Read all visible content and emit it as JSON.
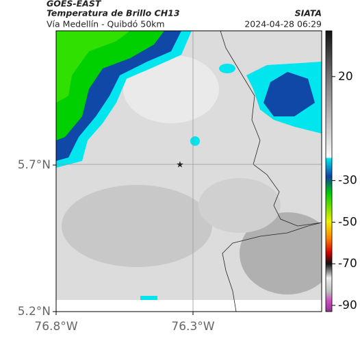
{
  "header": {
    "source": "GOES-EAST",
    "title": "Temperatura de Brillo CH13",
    "brand": "SIATA",
    "subtitle": "Vía Medellín - Quibdó 50km",
    "timestamp": "2024-04-28 06:29"
  },
  "map": {
    "xlim": [
      -76.8,
      -75.83
    ],
    "ylim": [
      5.2,
      6.158
    ],
    "xticks": [
      {
        "value": -76.8,
        "label": "76.8°W"
      },
      {
        "value": -76.3,
        "label": "76.3°W"
      }
    ],
    "yticks": [
      {
        "value": 5.7,
        "label": "5.7°N"
      },
      {
        "value": 5.2,
        "label": "5.2°N"
      }
    ]
  },
  "colorbar": {
    "range": [
      -93,
      42
    ],
    "ticks": [
      20,
      -30,
      -50,
      -70,
      -90
    ]
  }
}
